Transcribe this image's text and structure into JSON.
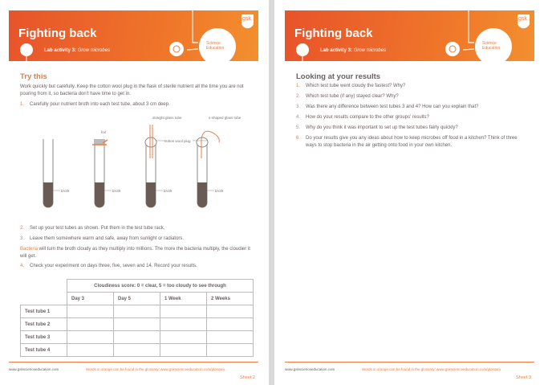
{
  "sheets": [
    {
      "title": "Fighting back",
      "lab_label": "Lab activity 3:",
      "lab_name": "Grow microbes",
      "brand": "gsk",
      "badge": "Science Education",
      "heading": "Try this",
      "intro": "Work quickly but carefully. Keep the cotton wool plug in the flask of sterile nutrient all the time you are not pouring from it, so bacteria don't have time to get in.",
      "step1": {
        "n": "1.",
        "text": "Carefully pour nutrient broth into each test tube, about 3 cm deep."
      },
      "diagram_labels": {
        "foil": "foil",
        "straight": "straight glass tube",
        "cotton": "cotton wool plug",
        "sshaped": "s-shaped glass tube",
        "broth": "broth"
      },
      "step2": {
        "n": "2.",
        "text": "Set up your test tubes as shown. Put them in the test tube rack."
      },
      "step3": {
        "n": "3.",
        "text": "Leave them somewhere warm and safe, away from sunlight or radiators."
      },
      "note_orange": "Bacteria",
      "note_rest": " will turn the broth cloudy as they multiply into millions. The more the bacteria multiply, the cloudier it will get.",
      "step4": {
        "n": "4.",
        "text": "Check your experiment on days three, five, seven and 14. Record your results."
      },
      "table": {
        "caption": "Cloudiness score: 0 = clear, 5 = too cloudy to see through",
        "columns": [
          "Day 3",
          "Day 5",
          "1 Week",
          "2 Weeks"
        ],
        "rows": [
          "Test tube 1",
          "Test tube 2",
          "Test tube 3",
          "Test tube 4"
        ]
      },
      "footer_url": "www.gskscienceeducation.com",
      "footer_note": "Words in orange can be found in the glossary: www.gskscienceeducation.com/glossary",
      "sheet": "Sheet 2"
    },
    {
      "title": "Fighting back",
      "lab_label": "Lab activity 3:",
      "lab_name": "Grow microbes",
      "brand": "gsk",
      "badge": "Science Education",
      "heading": "Looking at your results",
      "questions": [
        {
          "n": "1.",
          "text": "Which test tube went cloudy the fastest? Why?"
        },
        {
          "n": "2.",
          "text": "Which test tube (if any) stayed clear? Why?"
        },
        {
          "n": "3.",
          "text": "Was there any difference between test tubes 3 and 4? How can you explain that?"
        },
        {
          "n": "4.",
          "text": "How do your results compare to the other groups' results?"
        },
        {
          "n": "5.",
          "text": "Why do you think it was important to set up the test tubes fairly quickly?"
        },
        {
          "n": "6.",
          "text": "Do your results give you any ideas about how to keep microbes off food in a kitchen? Think of three ways to stop bacteria in the air getting onto food in your own kitchen."
        }
      ],
      "footer_url": "www.gskscienceeducation.com",
      "footer_note": "Words in orange can be found in the glossary: www.gskscienceeducation.com/glossary",
      "sheet": "Sheet 3"
    }
  ],
  "colors": {
    "orange": "#f07a40",
    "text": "#6b6060",
    "broth": "#6b5b55"
  }
}
